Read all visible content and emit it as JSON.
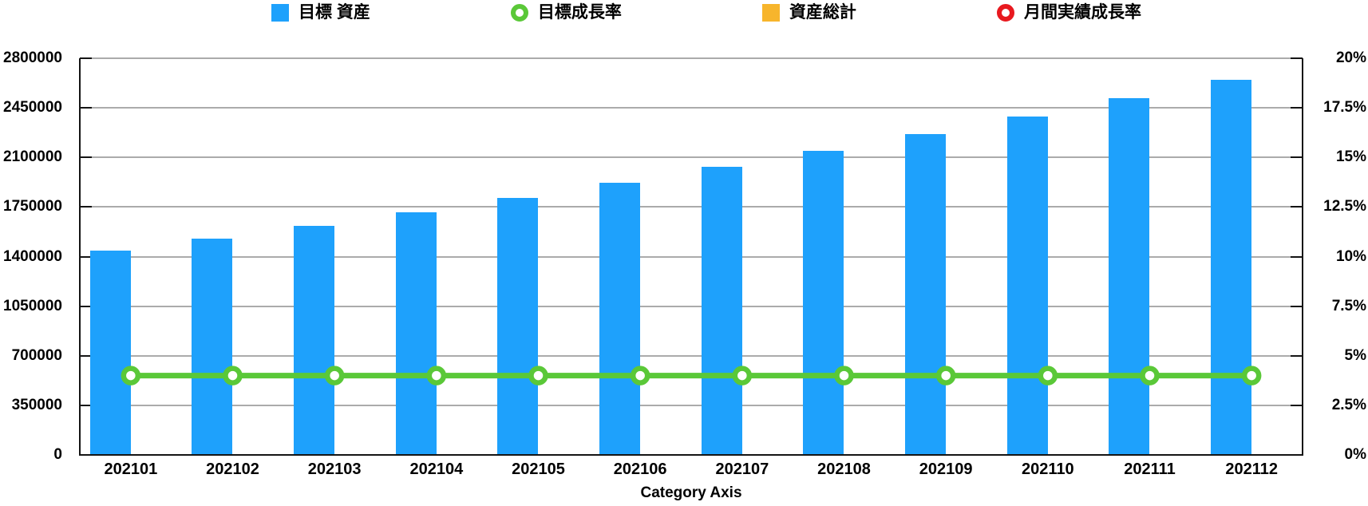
{
  "legend": {
    "items": [
      {
        "label": "目標 資産",
        "marker": "square",
        "color": "#1ea1fc"
      },
      {
        "label": "目標成長率",
        "marker": "ring",
        "color": "#5ac838"
      },
      {
        "label": "資産総計",
        "marker": "square",
        "color": "#f7b52c"
      },
      {
        "label": "月間実績成長率",
        "marker": "ring",
        "color": "#e8191f"
      }
    ]
  },
  "chart_data": {
    "type": "bar",
    "title": "",
    "xlabel": "Category Axis",
    "ylabel": "",
    "legend_position": "top",
    "grid": true,
    "categories": [
      "202101",
      "202102",
      "202103",
      "202104",
      "202105",
      "202106",
      "202107",
      "202108",
      "202109",
      "202110",
      "202111",
      "202112"
    ],
    "series": [
      {
        "name": "目標 資産",
        "kind": "bar",
        "axis": "left",
        "color": "#1ea1fc",
        "values": [
          1440000,
          1525000,
          1615000,
          1715000,
          1815000,
          1920000,
          2035000,
          2145000,
          2265000,
          2390000,
          2520000,
          2650000
        ]
      },
      {
        "name": "目標成長率",
        "kind": "line",
        "axis": "right",
        "color": "#5ac838",
        "unit": "%",
        "values": [
          4,
          4,
          4,
          4,
          4,
          4,
          4,
          4,
          4,
          4,
          4,
          4
        ]
      },
      {
        "name": "資産総計",
        "kind": "bar",
        "axis": "left",
        "color": "#f7b52c",
        "values": []
      },
      {
        "name": "月間実績成長率",
        "kind": "line",
        "axis": "right",
        "color": "#e8191f",
        "unit": "%",
        "values": []
      }
    ],
    "left_axis": {
      "min": 0,
      "max": 2800000,
      "tick_values": [
        0,
        350000,
        700000,
        1050000,
        1400000,
        1750000,
        2100000,
        2450000,
        2800000
      ],
      "tick_labels": [
        "0",
        "350000",
        "700000",
        "1050000",
        "1400000",
        "1750000",
        "2100000",
        "2450000",
        "2800000"
      ]
    },
    "right_axis": {
      "min": 0,
      "max": 20,
      "tick_values": [
        0,
        2.5,
        5,
        7.5,
        10,
        12.5,
        15,
        17.5,
        20
      ],
      "tick_labels": [
        "0%",
        "2.5%",
        "5%",
        "7.5%",
        "10%",
        "12.5%",
        "15%",
        "17.5%",
        "20%"
      ]
    },
    "colors": {
      "grid": "#ababab",
      "axis": "#141414",
      "text": "#000000"
    }
  }
}
